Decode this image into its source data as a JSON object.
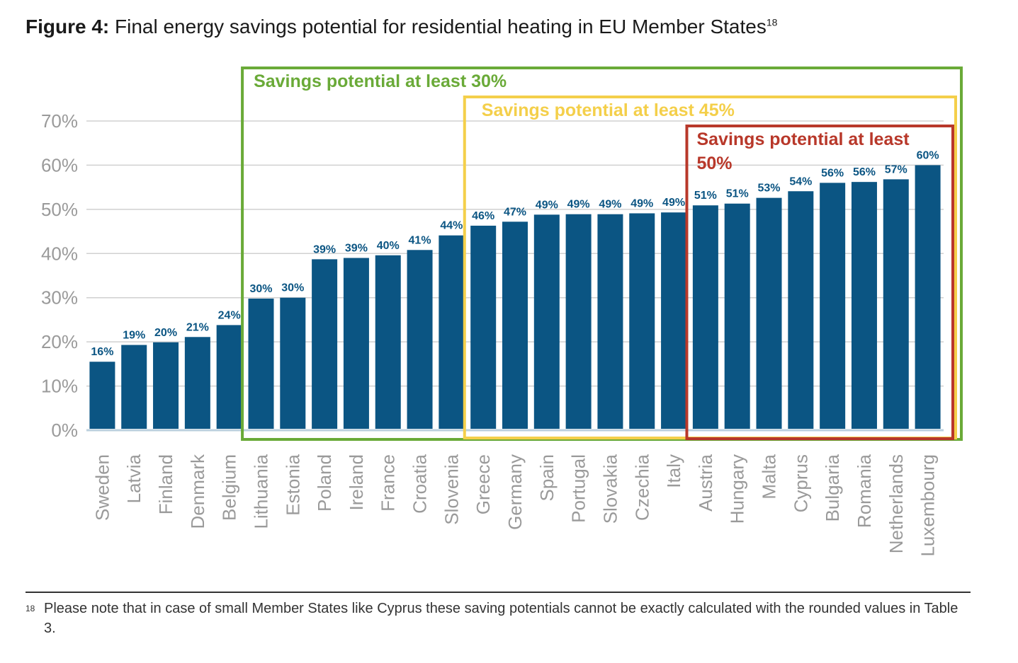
{
  "figure": {
    "label": "Figure 4:",
    "title": "Final energy savings potential for residential heating in EU Member States",
    "title_ref": "18"
  },
  "colors": {
    "bar": "#0b5583",
    "bar_label": "#0b5583",
    "grid": "#d0d0d0",
    "axis_text": "#9a9a9a",
    "box_30": "#6aaa38",
    "box_45": "#f4cf4a",
    "box_50": "#b8382a"
  },
  "chart_data": {
    "type": "bar",
    "title": "Final energy savings potential for residential heating in EU Member States",
    "categories": [
      "Sweden",
      "Latvia",
      "Finland",
      "Denmark",
      "Belgium",
      "Lithuania",
      "Estonia",
      "Poland",
      "Ireland",
      "France",
      "Croatia",
      "Slovenia",
      "Greece",
      "Germany",
      "Spain",
      "Portugal",
      "Slovakia",
      "Czechia",
      "Italy",
      "Austria",
      "Hungary",
      "Malta",
      "Cyprus",
      "Bulgaria",
      "Romania",
      "Netherlands",
      "Luxembourg"
    ],
    "values": [
      15.5,
      19.3,
      19.9,
      21.1,
      23.8,
      29.8,
      30.0,
      38.7,
      39.0,
      39.6,
      40.8,
      44.1,
      46.3,
      47.2,
      48.8,
      48.9,
      48.9,
      49.1,
      49.3,
      50.9,
      51.3,
      52.6,
      54.1,
      56.0,
      56.2,
      56.8,
      60.0
    ],
    "labels": [
      "16%",
      "19%",
      "20%",
      "21%",
      "24%",
      "30%",
      "30%",
      "39%",
      "39%",
      "40%",
      "41%",
      "44%",
      "46%",
      "47%",
      "49%",
      "49%",
      "49%",
      "49%",
      "49%",
      "51%",
      "51%",
      "53%",
      "54%",
      "56%",
      "56%",
      "57%",
      "60%"
    ],
    "yticks": [
      "0%",
      "10%",
      "20%",
      "30%",
      "40%",
      "50%",
      "60%",
      "70%"
    ],
    "ylim": [
      0,
      70
    ],
    "grid": true,
    "highlight_boxes": [
      {
        "label": "Savings potential at least 30%",
        "from": "Lithuania",
        "to": "Luxembourg"
      },
      {
        "label": "Savings potential at least 45%",
        "from": "Greece",
        "to": "Luxembourg"
      },
      {
        "label": "Savings potential at least 50%",
        "from": "Austria",
        "to": "Luxembourg"
      }
    ]
  },
  "footnote": {
    "ref": "18",
    "text": "Please note that in case of small Member States like Cyprus these saving potentials cannot be exactly calculated with the rounded values in Table 3."
  }
}
